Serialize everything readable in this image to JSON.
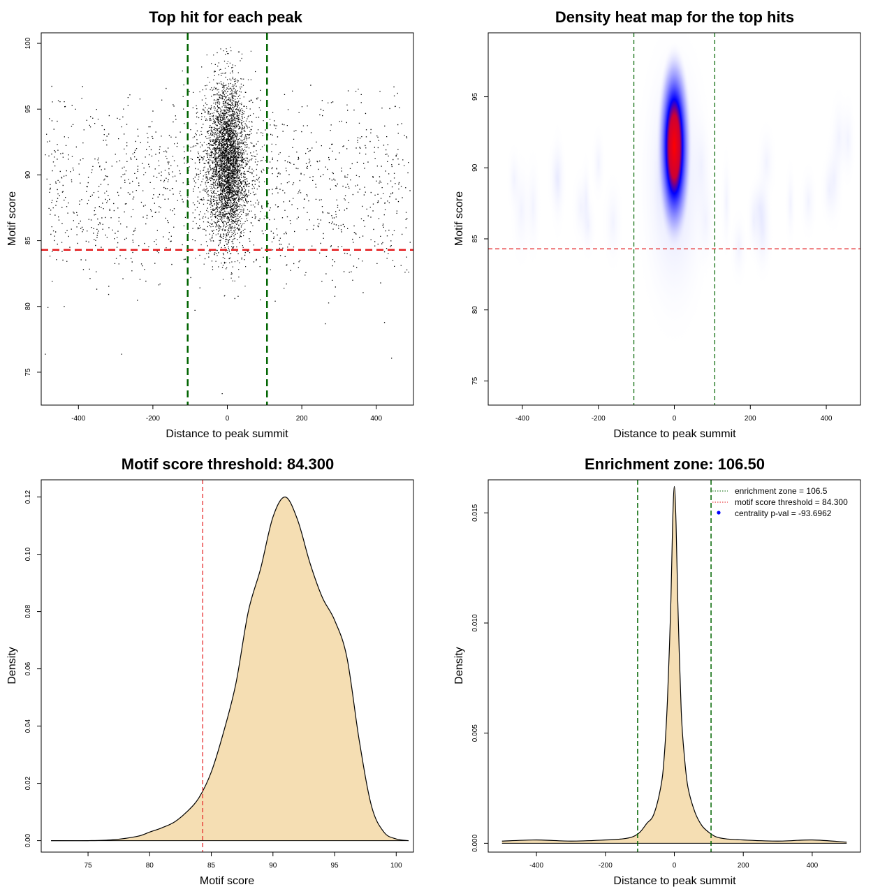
{
  "colors": {
    "scatter_point": "#000000",
    "threshold_line": "#e41a1c",
    "zone_line": "#006400",
    "density_fill": "#f5deb3",
    "heat_low": "#ffffff",
    "heat_mid": "#0000ff",
    "heat_high": "#ff0000",
    "legend_marker": "#0000ff"
  },
  "chart_data": [
    {
      "id": "scatter",
      "type": "scatter",
      "title": "Top hit for each peak",
      "xlabel": "Distance to peak summit",
      "ylabel": "Motif score",
      "xlim": [
        -500,
        500
      ],
      "ylim": [
        72.5,
        100.8
      ],
      "xticks": [
        -400,
        -200,
        0,
        200,
        400
      ],
      "yticks": [
        75,
        80,
        85,
        90,
        95,
        100
      ],
      "hlines": [
        {
          "y": 84.3,
          "role": "motif score threshold"
        }
      ],
      "vlines": [
        {
          "x": -106.5,
          "role": "enrichment zone"
        },
        {
          "x": 106.5,
          "role": "enrichment zone"
        }
      ],
      "point_model": {
        "central": {
          "count": 7000,
          "x_mean": 0,
          "x_sd": 25,
          "y_mean": 91,
          "y_sd": 3
        },
        "background": {
          "count": 1300,
          "x_range": [
            -490,
            490
          ],
          "y_mean": 89,
          "y_sd": 3.5
        },
        "outliers": [
          {
            "x": -15,
            "y": 73.4
          },
          {
            "x": 440,
            "y": 76.1
          },
          {
            "x": -285,
            "y": 76.4
          },
          {
            "x": -490,
            "y": 76.4
          }
        ]
      }
    },
    {
      "id": "heatmap",
      "type": "heatmap",
      "title": "Density heat map for the top hits",
      "xlabel": "Distance to peak summit",
      "ylabel": "Motif score",
      "xlim": [
        -490,
        490
      ],
      "ylim": [
        73.3,
        99.5
      ],
      "xticks": [
        -400,
        -200,
        0,
        200,
        400
      ],
      "yticks": [
        75,
        80,
        85,
        90,
        95
      ],
      "hlines": [
        {
          "y": 84.3,
          "role": "motif score threshold"
        }
      ],
      "vlines": [
        {
          "x": -106.5,
          "role": "enrichment zone"
        },
        {
          "x": 106.5,
          "role": "enrichment zone"
        }
      ],
      "density_peak": {
        "x": 0,
        "y": 91.5
      }
    },
    {
      "id": "score-density",
      "type": "area",
      "title": "Motif score threshold: 84.300",
      "xlabel": "Motif score",
      "ylabel": "Density",
      "xlim": [
        71.2,
        101.4
      ],
      "ylim": [
        -0.004,
        0.126
      ],
      "xticks": [
        75,
        80,
        85,
        90,
        95,
        100
      ],
      "yticks": [
        0.0,
        0.02,
        0.04,
        0.06,
        0.08,
        0.1,
        0.12
      ],
      "ytick_labels": [
        "0.00",
        "0.02",
        "0.04",
        "0.06",
        "0.08",
        "0.10",
        "0.12"
      ],
      "vlines": [
        {
          "x": 84.3,
          "role": "motif score threshold"
        }
      ],
      "x": [
        72,
        75,
        77,
        79,
        80,
        81,
        82,
        83,
        84,
        85,
        86,
        87,
        88,
        89,
        90,
        91,
        92,
        93,
        94,
        95,
        96,
        97,
        98,
        99,
        100,
        101
      ],
      "y": [
        0.0,
        0.0,
        0.0003,
        0.0015,
        0.003,
        0.0045,
        0.0065,
        0.01,
        0.015,
        0.024,
        0.038,
        0.055,
        0.08,
        0.095,
        0.113,
        0.12,
        0.112,
        0.097,
        0.085,
        0.077,
        0.064,
        0.035,
        0.012,
        0.003,
        0.0006,
        0.0
      ]
    },
    {
      "id": "distance-density",
      "type": "area",
      "title": "Enrichment zone: 106.50",
      "xlabel": "Distance to peak summit",
      "ylabel": "Density",
      "xlim": [
        -540,
        540
      ],
      "ylim": [
        -0.0004,
        0.0165
      ],
      "xticks": [
        -400,
        -200,
        0,
        200,
        400
      ],
      "yticks": [
        0.0,
        0.005,
        0.01,
        0.015
      ],
      "ytick_labels": [
        "0.000",
        "0.005",
        "0.010",
        "0.015"
      ],
      "vlines": [
        {
          "x": -106.5,
          "role": "enrichment zone"
        },
        {
          "x": 106.5,
          "role": "enrichment zone"
        }
      ],
      "x": [
        -500,
        -400,
        -300,
        -200,
        -150,
        -120,
        -100,
        -80,
        -60,
        -40,
        -30,
        -20,
        -10,
        -5,
        0,
        5,
        10,
        20,
        30,
        40,
        60,
        80,
        100,
        120,
        150,
        200,
        300,
        400,
        500
      ],
      "y": [
        0.0001,
        0.00015,
        0.0001,
        0.00015,
        0.0002,
        0.0003,
        0.0005,
        0.0009,
        0.0013,
        0.0025,
        0.0038,
        0.0065,
        0.011,
        0.0145,
        0.0162,
        0.0145,
        0.011,
        0.006,
        0.0038,
        0.0025,
        0.0014,
        0.0008,
        0.0005,
        0.0003,
        0.0002,
        0.00015,
        0.0001,
        0.00015,
        5e-05
      ],
      "legend": {
        "placement": "top-right",
        "entries": [
          {
            "label": "enrichment zone = 106.5",
            "style": "dotted-line",
            "color": "#006400"
          },
          {
            "label": "motif score threshold = 84.300",
            "style": "dotted-line",
            "color": "#e41a1c"
          },
          {
            "label": "centrality p-val = -93.6962",
            "style": "point",
            "color": "#0000ff"
          }
        ]
      }
    }
  ]
}
